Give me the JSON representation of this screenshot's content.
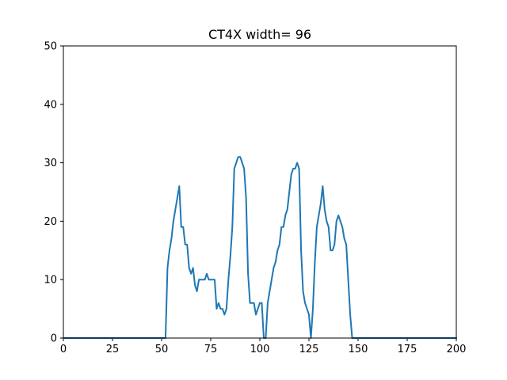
{
  "chart_data": {
    "type": "line",
    "title": "CT4X width= 96",
    "xlabel": "",
    "ylabel": "",
    "xlim": [
      0,
      200
    ],
    "ylim": [
      0,
      50
    ],
    "xticks": [
      0,
      25,
      50,
      75,
      100,
      125,
      150,
      175,
      200
    ],
    "yticks": [
      0,
      10,
      20,
      30,
      40,
      50
    ],
    "grid": false,
    "line_color": "#1f77b4",
    "series": [
      {
        "x": [
          0,
          52,
          53,
          54,
          55,
          56,
          57,
          58,
          59,
          60,
          61,
          62,
          63,
          64,
          65,
          66,
          67,
          68,
          69,
          70,
          71,
          72,
          73,
          74,
          75,
          76,
          77,
          78,
          79,
          80,
          81,
          82,
          83,
          84,
          85,
          86,
          87,
          88,
          89,
          90,
          91,
          92,
          93,
          94,
          95,
          96,
          97,
          98,
          99,
          100,
          101,
          102,
          103,
          104,
          105,
          106,
          107,
          108,
          109,
          110,
          111,
          112,
          113,
          114,
          115,
          116,
          117,
          118,
          119,
          120,
          121,
          122,
          123,
          124,
          125,
          126,
          127,
          128,
          129,
          130,
          131,
          132,
          133,
          134,
          135,
          136,
          137,
          138,
          139,
          140,
          141,
          142,
          143,
          144,
          145,
          146,
          147,
          148,
          200
        ],
        "y": [
          0,
          0,
          12,
          15,
          17,
          20,
          22,
          24,
          26,
          19,
          19,
          16,
          16,
          12,
          11,
          12,
          9,
          8,
          10,
          10,
          10,
          10,
          11,
          10,
          10,
          10,
          10,
          5,
          6,
          5,
          5,
          4,
          5,
          10,
          14,
          19,
          29,
          30,
          31,
          31,
          30,
          29,
          24,
          11,
          6,
          6,
          6,
          4,
          5,
          6,
          6,
          0,
          0,
          6,
          8,
          10,
          12,
          13,
          15,
          16,
          19,
          19,
          21,
          22,
          25,
          28,
          29,
          29,
          30,
          29,
          15,
          8,
          6,
          5,
          4,
          0,
          5,
          13,
          19,
          21,
          23,
          26,
          22,
          20,
          19,
          15,
          15,
          16,
          20,
          21,
          20,
          19,
          17,
          16,
          10,
          4,
          0,
          0,
          0
        ]
      }
    ]
  }
}
